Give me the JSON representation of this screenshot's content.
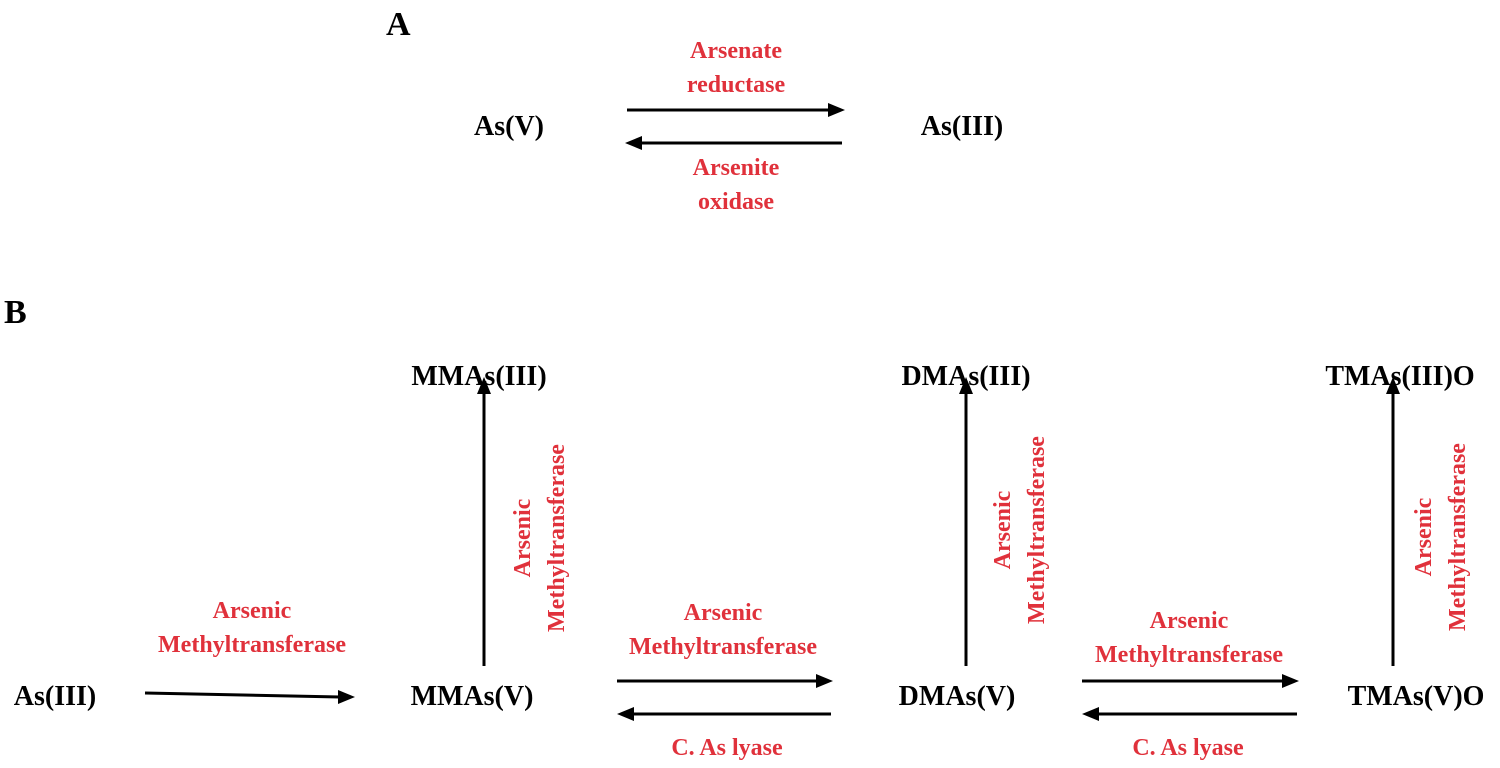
{
  "panel_a": {
    "label": "A",
    "left_species": "As(V)",
    "right_species": "As(III)",
    "forward_enzyme": [
      "Arsenate",
      "reductase"
    ],
    "reverse_enzyme": [
      "Arsenite",
      "oxidase"
    ]
  },
  "panel_b": {
    "label": "B",
    "species": {
      "as3": "As(III)",
      "mmas5": "MMAs(V)",
      "dmas5": "DMAs(V)",
      "tmas5o": "TMAs(V)O",
      "mmas3": "MMAs(III)",
      "dmas3": "DMAs(III)",
      "tmas3o": "TMAs(III)O"
    },
    "methyltransferase": [
      "Arsenic",
      "Methyltransferase"
    ],
    "lyase": "C. As lyase"
  },
  "colors": {
    "enzyme_text": "#e0313b",
    "species_text": "#000000",
    "arrow": "#000000"
  }
}
